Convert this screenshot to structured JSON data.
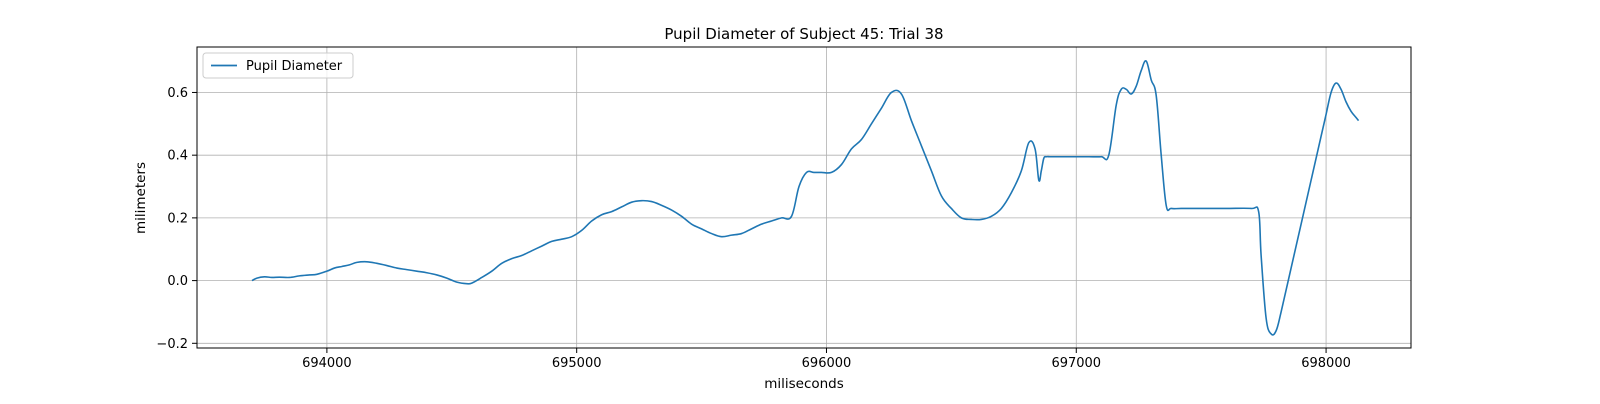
{
  "chart_data": {
    "type": "line",
    "title": "Pupil Diameter of Subject 45: Trial 38",
    "xlabel": "miliseconds",
    "ylabel": "milimeters",
    "xlim": [
      693480,
      698340
    ],
    "ylim": [
      -0.215,
      0.745
    ],
    "xticks": [
      694000,
      695000,
      696000,
      697000,
      698000
    ],
    "yticks": [
      -0.2,
      0.0,
      0.2,
      0.4,
      0.6
    ],
    "ytick_labels": [
      "−0.2",
      "0.0",
      "0.2",
      "0.4",
      "0.6"
    ],
    "grid": true,
    "legend_position": "top-left",
    "series": [
      {
        "name": "Pupil Diameter",
        "color": "#1f77b4",
        "x": [
          693700,
          693720,
          693750,
          693780,
          693810,
          693850,
          693890,
          693930,
          693960,
          694000,
          694030,
          694060,
          694090,
          694120,
          694160,
          694200,
          694240,
          694280,
          694320,
          694360,
          694400,
          694440,
          694480,
          694520,
          694560,
          694580,
          694620,
          694660,
          694700,
          694740,
          694780,
          694820,
          694860,
          694900,
          694940,
          694980,
          695020,
          695060,
          695100,
          695140,
          695180,
          695220,
          695260,
          695300,
          695340,
          695380,
          695420,
          695460,
          695500,
          695540,
          695580,
          695620,
          695660,
          695700,
          695740,
          695780,
          695820,
          695860,
          695890,
          695920,
          695950,
          695980,
          696020,
          696060,
          696100,
          696140,
          696180,
          696220,
          696260,
          696300,
          696340,
          696380,
          696420,
          696460,
          696500,
          696540,
          696580,
          696620,
          696660,
          696700,
          696740,
          696780,
          696810,
          696835,
          696850,
          696860,
          696870,
          696880,
          696900,
          696950,
          697000,
          697050,
          697100,
          697130,
          697160,
          697180,
          697200,
          697220,
          697240,
          697260,
          697280,
          697300,
          697320,
          697340,
          697360,
          697380,
          697420,
          697500,
          697600,
          697700,
          697730,
          697740,
          697760,
          697780,
          697800,
          697820,
          697860,
          697900,
          697940,
          697980,
          698000,
          698020,
          698040,
          698060,
          698080,
          698100,
          698120,
          698130
        ],
        "y": [
          0.0,
          0.008,
          0.012,
          0.01,
          0.011,
          0.01,
          0.015,
          0.018,
          0.02,
          0.03,
          0.04,
          0.045,
          0.05,
          0.058,
          0.06,
          0.055,
          0.048,
          0.04,
          0.035,
          0.03,
          0.025,
          0.018,
          0.008,
          -0.005,
          -0.01,
          -0.008,
          0.01,
          0.03,
          0.055,
          0.07,
          0.08,
          0.095,
          0.11,
          0.125,
          0.132,
          0.14,
          0.16,
          0.19,
          0.21,
          0.22,
          0.235,
          0.25,
          0.255,
          0.252,
          0.24,
          0.225,
          0.205,
          0.18,
          0.165,
          0.15,
          0.14,
          0.145,
          0.15,
          0.165,
          0.18,
          0.19,
          0.2,
          0.205,
          0.3,
          0.345,
          0.345,
          0.345,
          0.345,
          0.37,
          0.42,
          0.45,
          0.5,
          0.55,
          0.6,
          0.595,
          0.51,
          0.43,
          0.35,
          0.27,
          0.23,
          0.2,
          0.195,
          0.195,
          0.205,
          0.23,
          0.28,
          0.35,
          0.44,
          0.42,
          0.32,
          0.35,
          0.39,
          0.395,
          0.395,
          0.395,
          0.395,
          0.395,
          0.395,
          0.4,
          0.56,
          0.61,
          0.61,
          0.595,
          0.62,
          0.67,
          0.7,
          0.64,
          0.59,
          0.4,
          0.24,
          0.23,
          0.23,
          0.23,
          0.23,
          0.23,
          0.22,
          0.08,
          -0.12,
          -0.17,
          -0.16,
          -0.1,
          0.04,
          0.18,
          0.32,
          0.46,
          0.53,
          0.6,
          0.63,
          0.61,
          0.57,
          0.54,
          0.52,
          0.51
        ]
      }
    ]
  }
}
